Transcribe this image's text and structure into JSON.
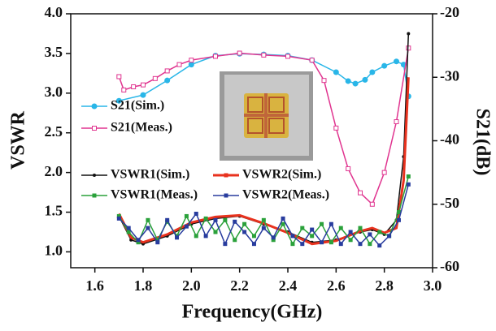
{
  "chart_data": {
    "type": "line",
    "xlabel": "Frequency(GHz)",
    "ylabel": "VSWR",
    "y2label": "S21(dB)",
    "xlim": [
      1.5,
      3.0
    ],
    "xticks": [
      1.6,
      1.8,
      {
        "value": 2.0,
        "label": "2.0"
      },
      2.2,
      2.4,
      2.6,
      2.8,
      {
        "value": 3.0,
        "label": "3.0"
      }
    ],
    "ylim": [
      0.8,
      4.0
    ],
    "yticks": [
      {
        "value": 1.0,
        "label": "1.0"
      },
      1.5,
      {
        "value": 2.0,
        "label": "2.0"
      },
      2.5,
      {
        "value": 3.0,
        "label": "3.0"
      },
      3.5,
      {
        "value": 4.0,
        "label": "4.0"
      }
    ],
    "y2lim": [
      -60,
      -20
    ],
    "y2ticks": [
      -60,
      -50,
      -40,
      -30,
      -20
    ],
    "series": [
      {
        "name": "S21(Sim.)",
        "color": "#29b6e8",
        "marker": "circle",
        "axis": "y2",
        "x": [
          1.7,
          1.8,
          1.9,
          2.0,
          2.1,
          2.2,
          2.3,
          2.4,
          2.5,
          2.6,
          2.65,
          2.68,
          2.72,
          2.75,
          2.8,
          2.85,
          2.88,
          2.9
        ],
        "values": [
          -33.7,
          -32.8,
          -30.5,
          -28.0,
          -26.6,
          -26.3,
          -26.4,
          -26.6,
          -27.3,
          -29.2,
          -30.6,
          -31.0,
          -30.4,
          -29.2,
          -28.2,
          -27.5,
          -28.0,
          -33.0
        ]
      },
      {
        "name": "S21(Meas.)",
        "color": "#e0348f",
        "marker": "square-open",
        "axis": "y2",
        "x": [
          1.7,
          1.72,
          1.76,
          1.8,
          1.85,
          1.9,
          1.95,
          2.0,
          2.1,
          2.2,
          2.3,
          2.4,
          2.5,
          2.55,
          2.6,
          2.65,
          2.7,
          2.75,
          2.8,
          2.85,
          2.9
        ],
        "values": [
          -29.9,
          -32.0,
          -31.5,
          -31.2,
          -30.2,
          -29.0,
          -28.0,
          -27.3,
          -26.7,
          -26.2,
          -26.5,
          -26.7,
          -27.3,
          -30.5,
          -38.0,
          -44.4,
          -48.2,
          -50.0,
          -45.0,
          -37.0,
          -25.4
        ]
      },
      {
        "name": "VSWR1(Sim.)",
        "color": "#111111",
        "marker": "dot",
        "axis": "y",
        "x": [
          1.7,
          1.75,
          1.8,
          1.9,
          2.0,
          2.1,
          2.2,
          2.3,
          2.4,
          2.5,
          2.6,
          2.7,
          2.75,
          2.8,
          2.85,
          2.88,
          2.9
        ],
        "values": [
          1.45,
          1.15,
          1.1,
          1.2,
          1.35,
          1.42,
          1.45,
          1.35,
          1.25,
          1.12,
          1.15,
          1.25,
          1.28,
          1.22,
          1.4,
          2.2,
          3.75
        ]
      },
      {
        "name": "VSWR2(Sim.)",
        "color": "#e8321e",
        "marker": "none",
        "axis": "y",
        "x": [
          1.7,
          1.75,
          1.8,
          1.9,
          2.0,
          2.1,
          2.2,
          2.3,
          2.4,
          2.5,
          2.6,
          2.7,
          2.75,
          2.8,
          2.85,
          2.88,
          2.9
        ],
        "values": [
          1.48,
          1.18,
          1.12,
          1.22,
          1.37,
          1.44,
          1.46,
          1.36,
          1.24,
          1.1,
          1.14,
          1.26,
          1.3,
          1.24,
          1.3,
          1.9,
          3.2
        ]
      },
      {
        "name": "VSWR1(Meas.)",
        "color": "#2aa13a",
        "marker": "square",
        "axis": "y",
        "x": [
          1.7,
          1.74,
          1.78,
          1.82,
          1.86,
          1.9,
          1.94,
          1.98,
          2.02,
          2.06,
          2.1,
          2.14,
          2.18,
          2.22,
          2.26,
          2.3,
          2.34,
          2.38,
          2.42,
          2.46,
          2.5,
          2.54,
          2.58,
          2.62,
          2.66,
          2.7,
          2.74,
          2.78,
          2.82,
          2.86,
          2.9
        ],
        "values": [
          1.45,
          1.25,
          1.12,
          1.4,
          1.15,
          1.38,
          1.2,
          1.45,
          1.2,
          1.42,
          1.25,
          1.4,
          1.15,
          1.35,
          1.2,
          1.4,
          1.15,
          1.35,
          1.1,
          1.3,
          1.2,
          1.35,
          1.12,
          1.3,
          1.15,
          1.3,
          1.1,
          1.25,
          1.2,
          1.5,
          1.95
        ]
      },
      {
        "name": "VSWR2(Meas.)",
        "color": "#283c9e",
        "marker": "square",
        "axis": "y",
        "x": [
          1.7,
          1.74,
          1.78,
          1.82,
          1.86,
          1.9,
          1.94,
          1.98,
          2.02,
          2.06,
          2.1,
          2.14,
          2.18,
          2.22,
          2.26,
          2.3,
          2.34,
          2.38,
          2.42,
          2.46,
          2.5,
          2.54,
          2.58,
          2.62,
          2.66,
          2.7,
          2.74,
          2.78,
          2.82,
          2.86,
          2.9
        ],
        "values": [
          1.42,
          1.3,
          1.15,
          1.3,
          1.12,
          1.4,
          1.18,
          1.32,
          1.48,
          1.2,
          1.4,
          1.1,
          1.38,
          1.25,
          1.1,
          1.3,
          1.18,
          1.42,
          1.2,
          1.1,
          1.28,
          1.12,
          1.35,
          1.1,
          1.25,
          1.1,
          1.22,
          1.08,
          1.2,
          1.4,
          1.85
        ]
      }
    ]
  }
}
